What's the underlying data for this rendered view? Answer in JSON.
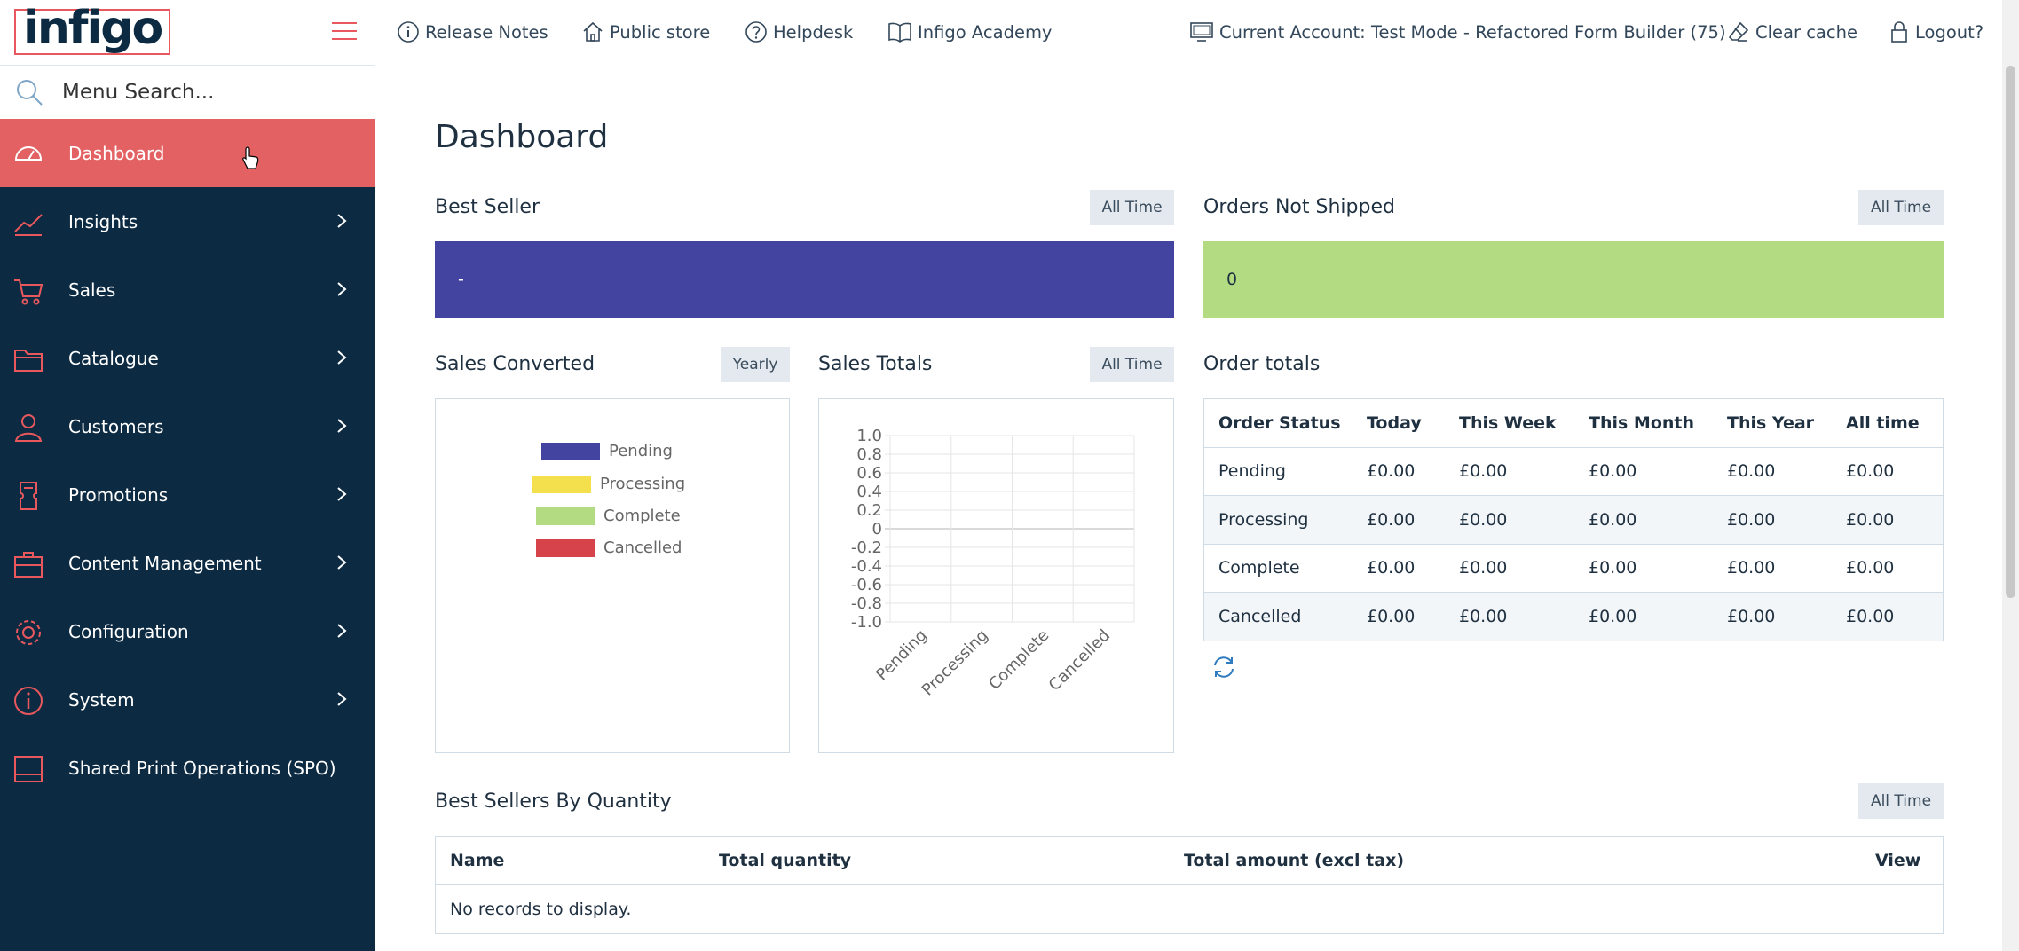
{
  "brand": {
    "logo_text": "infigo"
  },
  "menu_search": {
    "placeholder": "Menu Search..."
  },
  "sidebar": {
    "items": [
      {
        "label": "Dashboard",
        "icon": "speedometer-icon",
        "active": true
      },
      {
        "label": "Insights",
        "icon": "trend-icon"
      },
      {
        "label": "Sales",
        "icon": "cart-icon"
      },
      {
        "label": "Catalogue",
        "icon": "folder-icon"
      },
      {
        "label": "Customers",
        "icon": "user-icon"
      },
      {
        "label": "Promotions",
        "icon": "ticket-icon"
      },
      {
        "label": "Content Management",
        "icon": "briefcase-icon"
      },
      {
        "label": "Configuration",
        "icon": "gear-icon"
      },
      {
        "label": "System",
        "icon": "info-icon"
      },
      {
        "label": "Shared Print Operations (SPO)",
        "icon": "tray-icon"
      }
    ]
  },
  "topbar": {
    "release_notes": "Release Notes",
    "public_store": "Public store",
    "helpdesk": "Helpdesk",
    "academy": "Infigo Academy",
    "account": "Current Account: Test Mode - Refactored Form Builder (75)",
    "clear_cache": "Clear cache",
    "logout": "Logout?"
  },
  "page": {
    "title": "Dashboard"
  },
  "best_seller": {
    "title": "Best Seller",
    "range": "All Time",
    "value": "-"
  },
  "orders_not_shipped": {
    "title": "Orders Not Shipped",
    "range": "All Time",
    "value": "0"
  },
  "sales_converted": {
    "title": "Sales Converted",
    "range": "Yearly",
    "legend": [
      {
        "label": "Pending",
        "color": "#4343a0"
      },
      {
        "label": "Processing",
        "color": "#f4e04d"
      },
      {
        "label": "Complete",
        "color": "#b3dc82"
      },
      {
        "label": "Cancelled",
        "color": "#d7434a"
      }
    ]
  },
  "sales_totals": {
    "title": "Sales Totals",
    "range": "All Time"
  },
  "chart_data": {
    "type": "bar",
    "categories": [
      "Pending",
      "Processing",
      "Complete",
      "Cancelled"
    ],
    "values": [
      0,
      0,
      0,
      0
    ],
    "ylim": [
      -1.0,
      1.0
    ],
    "yticks": [
      "1.0",
      "0.8",
      "0.6",
      "0.4",
      "0.2",
      "0",
      "-0.2",
      "-0.4",
      "-0.6",
      "-0.8",
      "-1.0"
    ],
    "grid": true
  },
  "order_totals": {
    "title": "Order totals",
    "headers": [
      "Order Status",
      "Today",
      "This Week",
      "This Month",
      "This Year",
      "All time"
    ],
    "rows": [
      [
        "Pending",
        "£0.00",
        "£0.00",
        "£0.00",
        "£0.00",
        "£0.00"
      ],
      [
        "Processing",
        "£0.00",
        "£0.00",
        "£0.00",
        "£0.00",
        "£0.00"
      ],
      [
        "Complete",
        "£0.00",
        "£0.00",
        "£0.00",
        "£0.00",
        "£0.00"
      ],
      [
        "Cancelled",
        "£0.00",
        "£0.00",
        "£0.00",
        "£0.00",
        "£0.00"
      ]
    ]
  },
  "best_sellers_qty": {
    "title": "Best Sellers By Quantity",
    "range": "All Time",
    "headers": [
      "Name",
      "Total quantity",
      "Total amount (excl tax)",
      "View"
    ],
    "empty": "No records to display."
  },
  "colors": {
    "accent": "#e46163",
    "sidebar": "#0c2a42",
    "best_seller_bg": "#4343a0",
    "not_shipped_bg": "#b3dc82"
  }
}
